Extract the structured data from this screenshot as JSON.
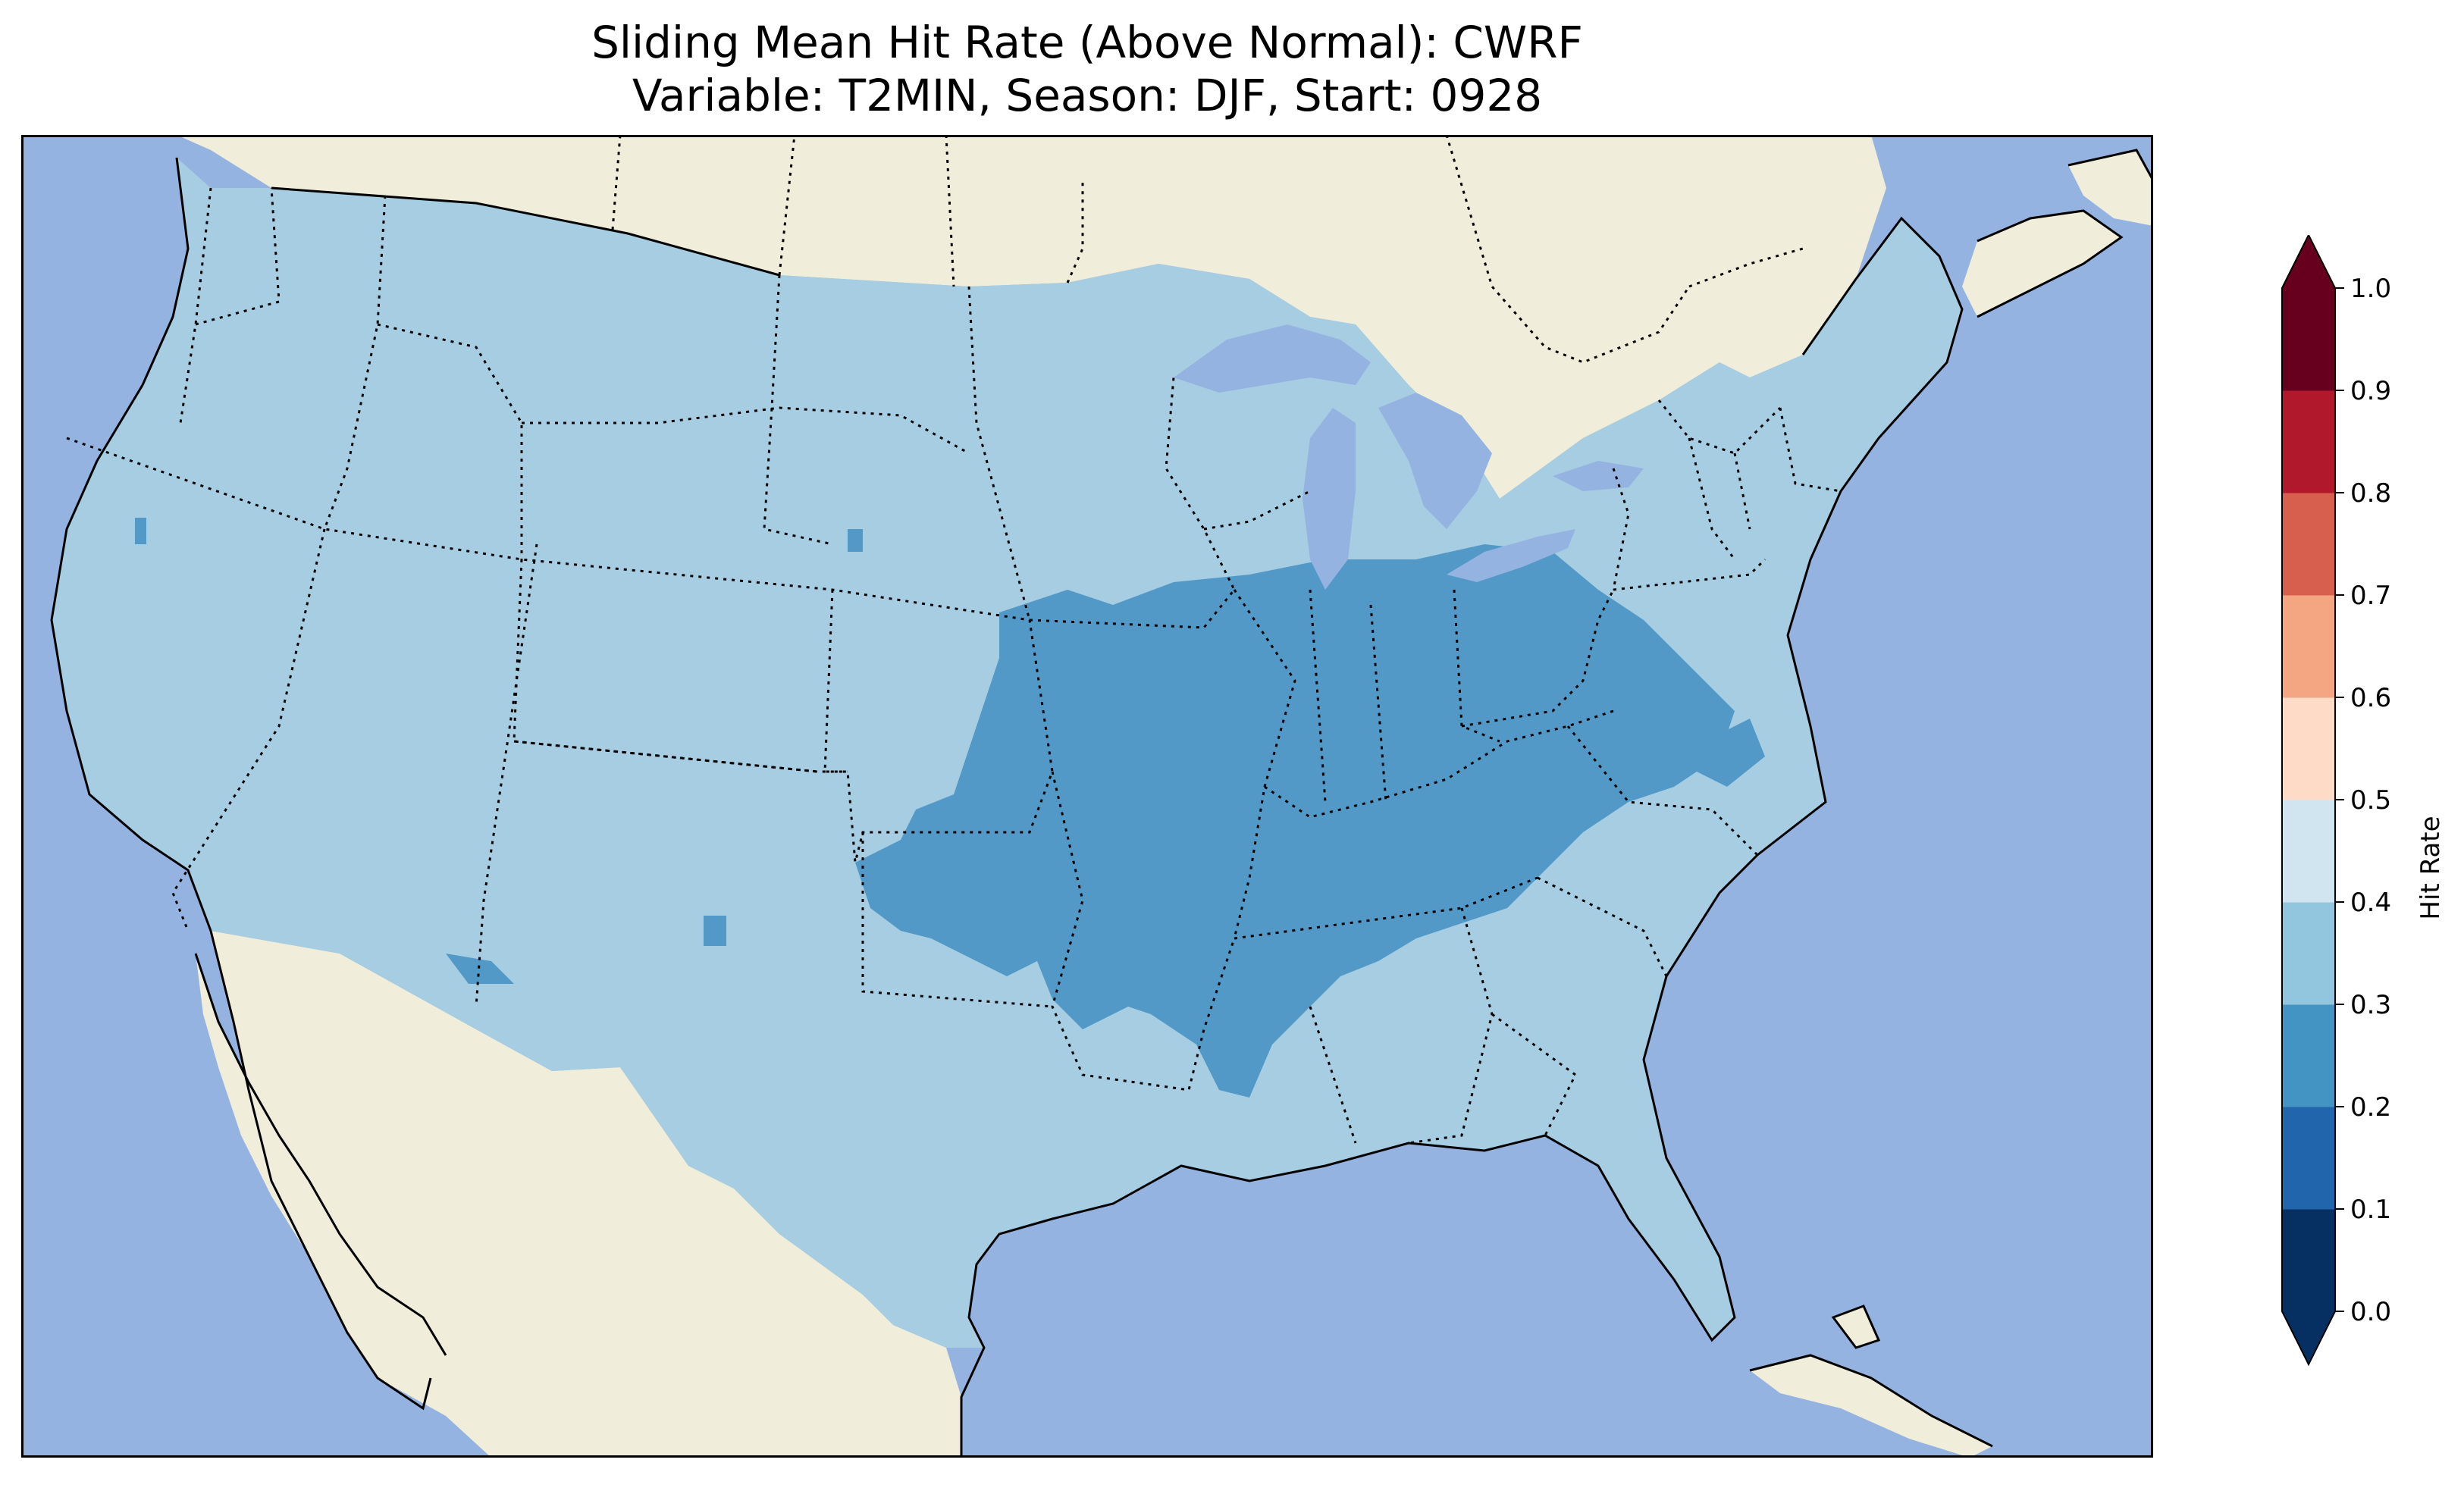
{
  "title": {
    "line1": "Sliding Mean Hit Rate (Above Normal): CWRF",
    "line2": "Variable: T2MIN, Season: DJF, Start: 0928"
  },
  "colors": {
    "ocean": "#95b3e0",
    "land": "#f0eddb",
    "low_band": "#a6cde2",
    "mid_band": "#5299c8"
  },
  "chart_data": {
    "type": "heatmap",
    "variable": "T2MIN",
    "season": "DJF",
    "start": "0928",
    "model": "CWRF",
    "metric": "Sliding Mean Hit Rate (Above Normal)",
    "dominant_value_range": [
      0.3,
      0.4
    ],
    "secondary_value_range": [
      0.2,
      0.3
    ],
    "secondary_region": "central and east-central United States",
    "colorbar": {
      "label": "Hit Rate",
      "extend": "both",
      "orientation": "vertical",
      "bins": [
        {
          "from": 0.0,
          "to": 0.1,
          "color": "#053061"
        },
        {
          "from": 0.1,
          "to": 0.2,
          "color": "#2166ac"
        },
        {
          "from": 0.2,
          "to": 0.3,
          "color": "#4393c3"
        },
        {
          "from": 0.3,
          "to": 0.4,
          "color": "#92c5de"
        },
        {
          "from": 0.4,
          "to": 0.5,
          "color": "#d1e5f0"
        },
        {
          "from": 0.5,
          "to": 0.6,
          "color": "#fddbc7"
        },
        {
          "from": 0.6,
          "to": 0.7,
          "color": "#f4a582"
        },
        {
          "from": 0.7,
          "to": 0.8,
          "color": "#d6604d"
        },
        {
          "from": 0.8,
          "to": 0.9,
          "color": "#b2182b"
        },
        {
          "from": 0.9,
          "to": 1.0,
          "color": "#67001f"
        }
      ],
      "under_color": "#053061",
      "over_color": "#67001f",
      "ticks": [
        "0.0",
        "0.1",
        "0.2",
        "0.3",
        "0.4",
        "0.5",
        "0.6",
        "0.7",
        "0.8",
        "0.9",
        "1.0"
      ]
    }
  }
}
